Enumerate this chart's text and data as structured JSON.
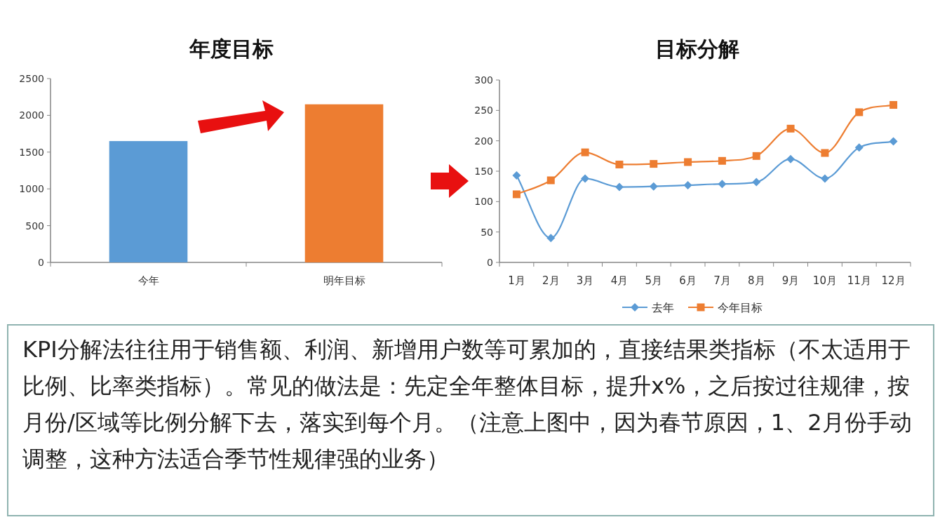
{
  "chart_data": [
    {
      "type": "bar",
      "title": "年度目标",
      "categories": [
        "今年",
        "明年目标"
      ],
      "values": [
        1650,
        2150
      ],
      "colors": [
        "#5b9bd5",
        "#ed7d31"
      ],
      "ylim": [
        0,
        2500
      ],
      "yticks": [
        0,
        500,
        1000,
        1500,
        2000,
        2500
      ],
      "grid": false
    },
    {
      "type": "line",
      "title": "目标分解",
      "categories": [
        "1月",
        "2月",
        "3月",
        "4月",
        "5月",
        "6月",
        "7月",
        "8月",
        "9月",
        "10月",
        "11月",
        "12月"
      ],
      "series": [
        {
          "name": "去年",
          "color": "#5b9bd5",
          "marker": "diamond",
          "values": [
            143,
            40,
            138,
            124,
            125,
            127,
            129,
            132,
            170,
            138,
            189,
            199
          ]
        },
        {
          "name": "今年目标",
          "color": "#ed7d31",
          "marker": "square",
          "values": [
            112,
            135,
            181,
            161,
            162,
            165,
            167,
            175,
            220,
            180,
            247,
            259
          ]
        }
      ],
      "ylim": [
        0,
        300
      ],
      "yticks": [
        0,
        50,
        100,
        150,
        200,
        250,
        300
      ],
      "grid": false,
      "legend": "bottom"
    },
    {
      "type": "other",
      "annotations": [
        "KPI分解法往往用于销售额、利润、新增用户数等可累加的，直接结果类指标（不太适用于比例、比率类指标）。常见的做法是：先定全年整体目标，提升x%，之后按过往规律，按月份/区域等比例分解下去，落实到每个月。（注意上图中，因为春节原因，1、2月份手动调整，这种方法适合季节性规律强的业务）"
      ]
    }
  ]
}
